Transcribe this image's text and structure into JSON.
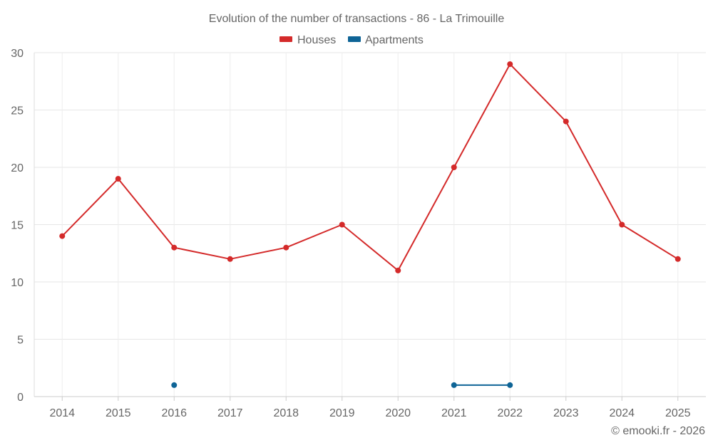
{
  "chart_data": {
    "type": "line",
    "title": "Evolution of the number of transactions - 86 - La Trimouille",
    "categories": [
      "2014",
      "2015",
      "2016",
      "2017",
      "2018",
      "2019",
      "2020",
      "2021",
      "2022",
      "2023",
      "2024",
      "2025"
    ],
    "series": [
      {
        "name": "Houses",
        "color": "#d42a2a",
        "values": [
          14,
          19,
          13,
          12,
          13,
          15,
          11,
          20,
          29,
          24,
          15,
          12
        ]
      },
      {
        "name": "Apartments",
        "color": "#0e6496",
        "values": [
          null,
          null,
          1,
          null,
          null,
          null,
          null,
          1,
          1,
          null,
          null,
          null
        ]
      }
    ],
    "ylim": [
      0,
      30
    ],
    "yticks": [
      0,
      5,
      10,
      15,
      20,
      25,
      30
    ],
    "xlabel": "",
    "ylabel": "",
    "grid": true,
    "legend": "top-center",
    "credit": "© emooki.fr - 2026"
  }
}
